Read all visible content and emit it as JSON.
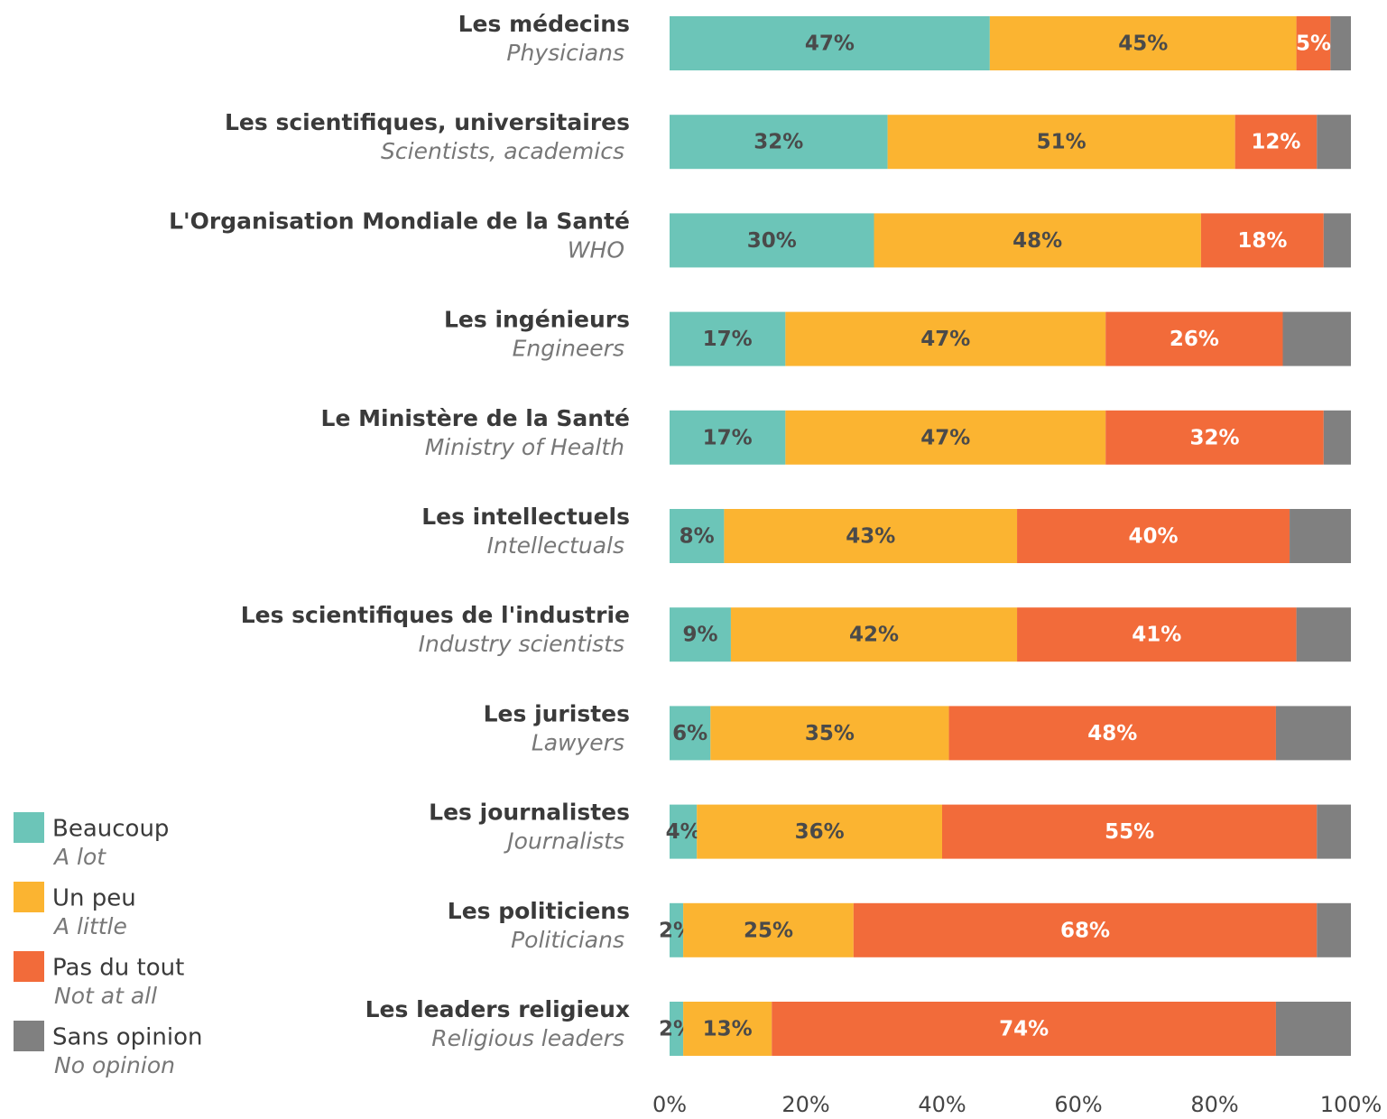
{
  "chart_data": {
    "type": "stacked_barh",
    "categories": [
      "Les médecins",
      "Les scientifiques, universitaires",
      "L'Organisation Mondiale de la Santé",
      "Les ingénieurs",
      "Le Ministère de la Santé",
      "Les intellectuels",
      "Les scientifiques de l'industrie",
      "Les juristes",
      "Les journalistes",
      "Les politiciens",
      "Les leaders religieux"
    ],
    "categories_en": [
      "Physicians",
      "Scientists, academics",
      "WHO",
      "Engineers",
      "Ministry of Health",
      "Intellectuals",
      "Industry scientists",
      "Lawyers",
      "Journalists",
      "Politicians",
      "Religious leaders"
    ],
    "series": [
      {
        "name": "Beaucoup",
        "name_en": "A lot",
        "color": "#6cc5b8",
        "label_color": "#4a4a4a",
        "values": [
          47,
          32,
          30,
          17,
          17,
          8,
          9,
          6,
          4,
          2,
          2
        ],
        "value_labels": [
          "47%",
          "32%",
          "30%",
          "17%",
          "17%",
          "8%",
          "9%",
          "6%",
          "4%",
          "2%",
          "2%"
        ]
      },
      {
        "name": "Un peu",
        "name_en": "A little",
        "color": "#fbb431",
        "label_color": "#4a4a4a",
        "values": [
          45,
          51,
          48,
          47,
          47,
          43,
          42,
          35,
          36,
          25,
          13
        ],
        "value_labels": [
          "45%",
          "51%",
          "48%",
          "47%",
          "47%",
          "43%",
          "42%",
          "35%",
          "36%",
          "25%",
          "13%"
        ]
      },
      {
        "name": "Pas du tout",
        "name_en": "Not at all",
        "color": "#f26b3a",
        "label_color": "#ffffff",
        "values": [
          5,
          12,
          18,
          26,
          32,
          40,
          41,
          48,
          55,
          68,
          74
        ],
        "value_labels": [
          "5%",
          "12%",
          "18%",
          "26%",
          "32%",
          "40%",
          "41%",
          "48%",
          "55%",
          "68%",
          "74%"
        ]
      },
      {
        "name": "Sans opinion",
        "name_en": "No opinion",
        "color": "#808080",
        "values": [
          3,
          5,
          4,
          10,
          4,
          9,
          8,
          11,
          5,
          5,
          11
        ]
      }
    ],
    "xlim": [
      0,
      100
    ],
    "xticks": [
      {
        "value": 0,
        "label": "0%"
      },
      {
        "value": 20,
        "label": "20%"
      },
      {
        "value": 40,
        "label": "40%"
      },
      {
        "value": 60,
        "label": "60%"
      },
      {
        "value": 80,
        "label": "80%"
      },
      {
        "value": 100,
        "label": "100%"
      }
    ]
  }
}
